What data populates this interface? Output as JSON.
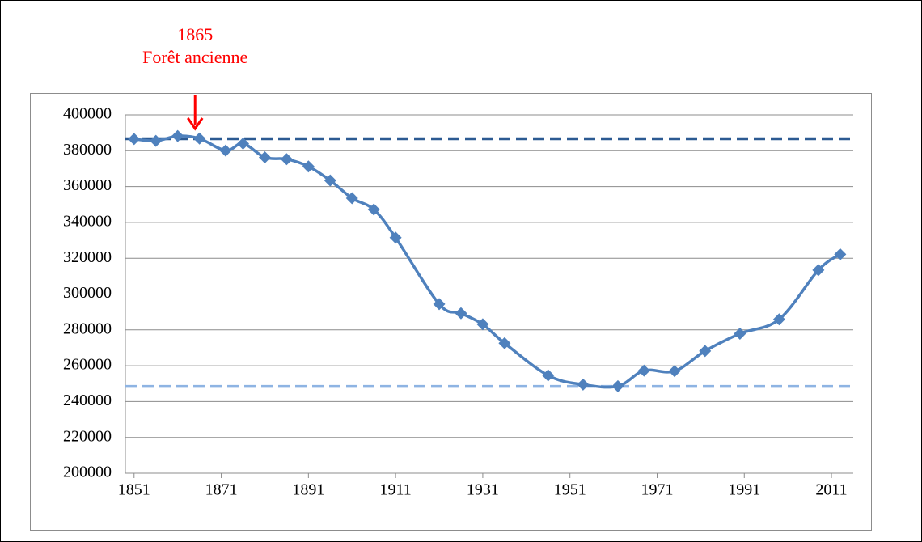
{
  "chart_data": {
    "type": "line",
    "x": [
      1851,
      1856,
      1861,
      1866,
      1872,
      1876,
      1881,
      1886,
      1891,
      1896,
      1901,
      1906,
      1911,
      1921,
      1926,
      1931,
      1936,
      1946,
      1954,
      1962,
      1968,
      1975,
      1982,
      1990,
      1999,
      2008,
      2013
    ],
    "series": [
      {
        "color": "#4f81bd",
        "values": [
          386500,
          385500,
          388200,
          386800,
          380100,
          384000,
          376300,
          375300,
          371200,
          363400,
          353500,
          347200,
          331500,
          294400,
          289300,
          283100,
          272600,
          254600,
          249500,
          248600,
          257300,
          257000,
          268200,
          277900,
          285900,
          313400,
          322200
        ]
      }
    ],
    "reference_lines": [
      {
        "value": 386700,
        "color": "#2c5a92"
      },
      {
        "value": 248500,
        "color": "#8eb4e3"
      }
    ],
    "annotation": {
      "lines": [
        "1865",
        "Forêt ancienne"
      ],
      "x": 1865,
      "color": "#ff0000"
    },
    "xlim": [
      1849,
      2016
    ],
    "xticks": [
      1851,
      1871,
      1891,
      1911,
      1931,
      1951,
      1971,
      1991,
      2011
    ],
    "ylim": [
      200000,
      400000
    ],
    "yticks": [
      200000,
      220000,
      240000,
      260000,
      280000,
      300000,
      320000,
      340000,
      360000,
      380000,
      400000
    ],
    "grid": true
  }
}
